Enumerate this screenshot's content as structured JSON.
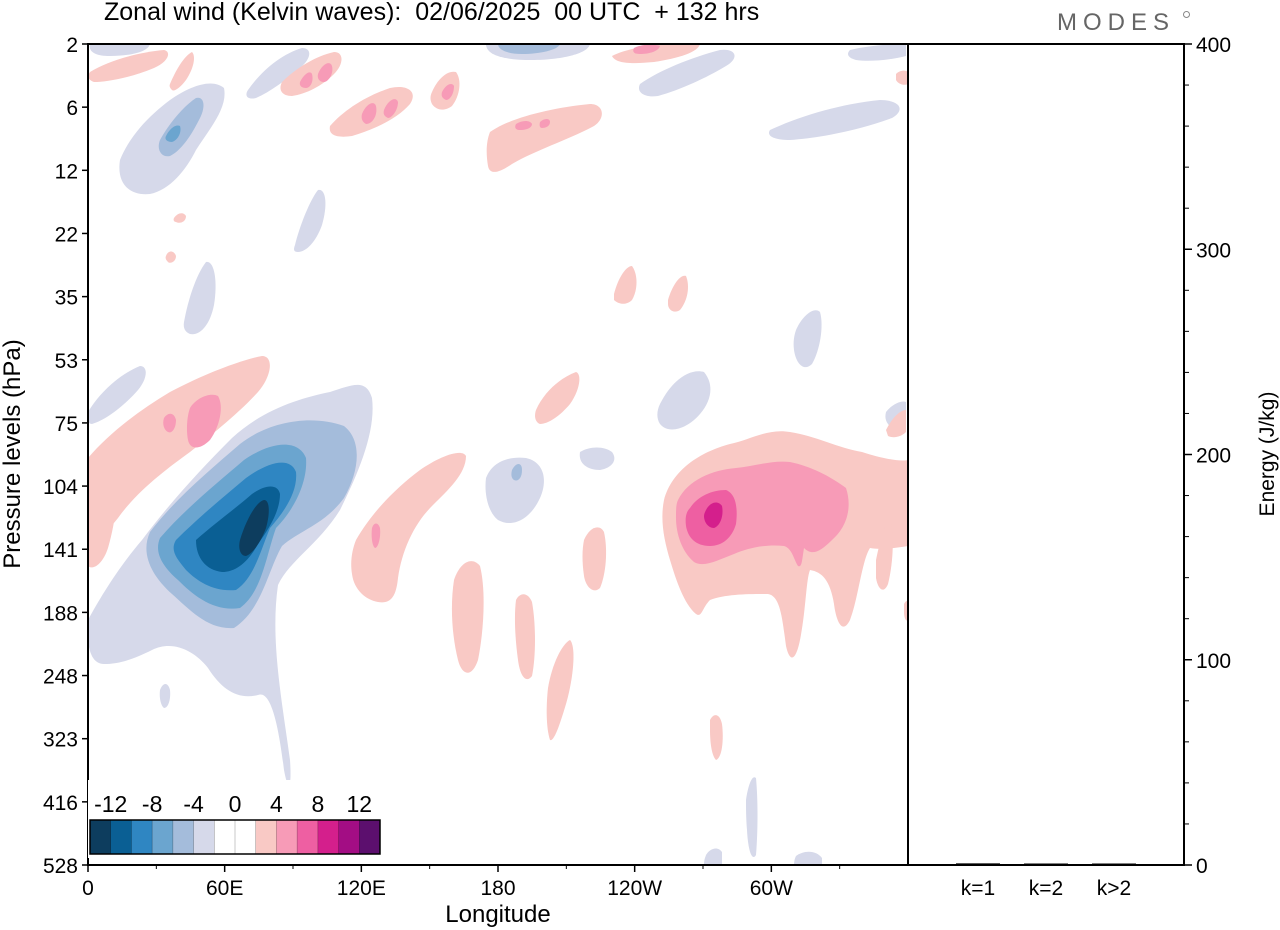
{
  "chart_data": [
    {
      "type": "heatmap",
      "title": "Zonal wind (Kelvin waves):  02/06/2025  00 UTC  + 132 hrs",
      "xlabel": "Longitude",
      "ylabel": "Pressure levels (hPa)",
      "x_ticks": [
        "0",
        "60E",
        "120E",
        "180",
        "120W",
        "60W"
      ],
      "x_tick_values": [
        0,
        60,
        120,
        180,
        240,
        300
      ],
      "x_range": [
        0,
        360
      ],
      "y_ticks": [
        "2",
        "6",
        "12",
        "22",
        "35",
        "53",
        "75",
        "104",
        "141",
        "188",
        "248",
        "323",
        "416",
        "528"
      ],
      "y_scale": "log-pressure, decreasing upward",
      "colorbar": {
        "labels": [
          "-12",
          "-8",
          "-4",
          "0",
          "4",
          "8",
          "12"
        ],
        "label_values": [
          -12,
          -8,
          -4,
          0,
          4,
          8,
          12
        ],
        "colors": [
          "#0d3d5e",
          "#0a5f94",
          "#2f86c2",
          "#6ba5cf",
          "#a4bcdb",
          "#d6d9ea",
          "#ffffff",
          "#ffffff",
          "#f9c9c5",
          "#f79bb7",
          "#ee5fa2",
          "#d41f8c",
          "#a30d84",
          "#5c0f6e"
        ],
        "placement": "bottom-left"
      },
      "features": [
        {
          "sign": "negative",
          "peak": -12,
          "lon_center": 55,
          "pressure_center": 130
        },
        {
          "sign": "positive",
          "peak": 8,
          "lon_center": 268,
          "pressure_center": 125
        },
        {
          "sign": "positive",
          "peak": 6,
          "lon_center": 50,
          "pressure_center": 72
        },
        {
          "sign": "positive",
          "peak": 4,
          "lon_center": 200,
          "pressure_center": 8
        },
        {
          "sign": "negative",
          "peak": -4,
          "lon_center": 38,
          "pressure_center": 8
        }
      ]
    },
    {
      "type": "bar",
      "ylabel": "Energy (J/kg)",
      "categories": [
        "k=1",
        "k=2",
        "k>2"
      ],
      "values": [
        0.8,
        0.5,
        0.6
      ],
      "ylim": [
        0,
        400
      ],
      "y_ticks": [
        "0",
        "100",
        "200",
        "300",
        "400"
      ],
      "y_tick_values": [
        0,
        100,
        200,
        300,
        400
      ],
      "y_axis_side": "right"
    }
  ],
  "brand": "MODES"
}
